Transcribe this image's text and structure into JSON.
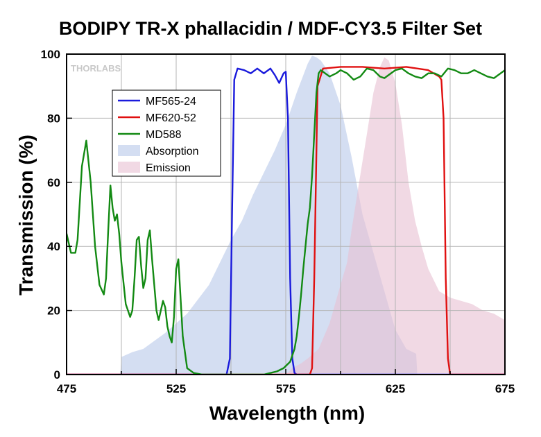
{
  "chart_data": {
    "type": "line",
    "title": "BODIPY TR-X phallacidin / MDF-CY3.5 Filter Set",
    "xlabel": "Wavelength (nm)",
    "ylabel": "Transmission (%)",
    "xlim": [
      475,
      675
    ],
    "ylim": [
      0,
      100
    ],
    "xticks": [
      "475",
      "525",
      "575",
      "625",
      "675"
    ],
    "yticks": [
      "0",
      "20",
      "40",
      "60",
      "80",
      "100"
    ],
    "grid": true,
    "legend_position": "top-left",
    "watermark": "THORLABS",
    "series": [
      {
        "name": "MF565-24",
        "kind": "line",
        "color": "#1a1adc",
        "x": [
          475,
          540,
          548,
          549.5,
          550.5,
          551.5,
          553,
          556,
          559,
          562,
          565,
          568,
          570,
          572,
          574,
          575,
          576,
          577,
          578,
          579,
          580,
          675
        ],
        "y": [
          0,
          0,
          0,
          5,
          50,
          92,
          95.5,
          95,
          94,
          95.5,
          94,
          95.5,
          93.5,
          91,
          94,
          94.5,
          80,
          30,
          5,
          0.5,
          0,
          0
        ]
      },
      {
        "name": "MF620-52",
        "kind": "line",
        "color": "#e01010",
        "x": [
          475,
          580,
          586,
          587,
          588,
          589.5,
          592,
          600,
          610,
          620,
          630,
          640,
          645,
          646,
          647,
          648,
          649,
          650,
          675
        ],
        "y": [
          0,
          0,
          0,
          2,
          30,
          90,
          95.5,
          96,
          96,
          95.5,
          96,
          95,
          93,
          92,
          80,
          30,
          5,
          0,
          0
        ]
      },
      {
        "name": "MD588",
        "kind": "line",
        "color": "#138a13",
        "x": [
          475,
          477,
          479,
          480,
          482,
          484,
          486,
          488,
          490,
          492,
          493,
          494,
          495,
          496,
          497,
          498,
          499,
          500,
          502,
          504,
          505,
          506,
          507,
          508,
          509,
          510,
          511,
          512,
          513,
          514,
          516,
          517,
          518,
          519,
          520,
          521,
          522,
          523,
          524,
          525,
          526,
          528,
          530,
          533,
          537,
          540,
          545,
          550,
          555,
          560,
          565,
          568,
          571,
          574,
          577,
          579,
          580,
          581,
          582,
          583,
          584,
          585,
          586,
          587,
          588,
          589,
          590,
          591,
          593,
          595,
          598,
          600,
          603,
          606,
          609,
          612,
          615,
          618,
          620,
          622,
          625,
          628,
          631,
          634,
          637,
          640,
          643,
          646,
          649,
          652,
          655,
          658,
          661,
          664,
          667,
          670,
          673,
          675
        ],
        "y": [
          44,
          38,
          38,
          42,
          65,
          73,
          60,
          40,
          28,
          25,
          30,
          45,
          59,
          52,
          48,
          50,
          44,
          35,
          22,
          18,
          20,
          30,
          42,
          43,
          34,
          27,
          30,
          42,
          45,
          36,
          20,
          17,
          20,
          23,
          21,
          15,
          12,
          10,
          18,
          33,
          36,
          12,
          2,
          0.5,
          0,
          0,
          0,
          0,
          0,
          0,
          0,
          0.5,
          1,
          2,
          4,
          8,
          12,
          18,
          25,
          33,
          40,
          47,
          52,
          62,
          75,
          88,
          94,
          95,
          94,
          93,
          94,
          95,
          94,
          92,
          93,
          95.5,
          95,
          93,
          92.5,
          93.5,
          95,
          95.5,
          94,
          93,
          92.5,
          94,
          94,
          93,
          95.5,
          95,
          94,
          94,
          95,
          94,
          93,
          92.5,
          94,
          95
        ]
      },
      {
        "name": "Absorption",
        "kind": "area",
        "color": "#b8c8ea",
        "x": [
          475,
          499.5,
          500,
          505,
          510,
          520,
          530,
          540,
          550,
          555,
          560,
          565,
          570,
          575,
          580,
          585,
          587,
          589,
          591,
          595,
          600,
          605,
          610,
          615,
          620,
          625,
          630,
          634.5,
          635
        ],
        "y": [
          0,
          0,
          5.5,
          7,
          8,
          13,
          19,
          28,
          42,
          48,
          56,
          63,
          70,
          78,
          88,
          97,
          99.5,
          99,
          98,
          94,
          84,
          68,
          50,
          38,
          26,
          14,
          8,
          6.5,
          0
        ]
      },
      {
        "name": "Emission",
        "kind": "area",
        "color": "#e8c0d2",
        "x": [
          575,
          578,
          582,
          585,
          590,
          595,
          600,
          603,
          605,
          608,
          612,
          615,
          618,
          620,
          622,
          625,
          628,
          631,
          634,
          637,
          640,
          645,
          650,
          655,
          660,
          665,
          670,
          675
        ],
        "y": [
          0,
          2,
          3.5,
          5,
          8,
          16,
          28,
          35,
          45,
          58,
          75,
          88,
          96,
          99,
          98,
          91,
          78,
          60,
          48,
          40,
          33,
          26,
          24,
          23,
          22,
          20,
          19,
          17
        ]
      }
    ]
  }
}
